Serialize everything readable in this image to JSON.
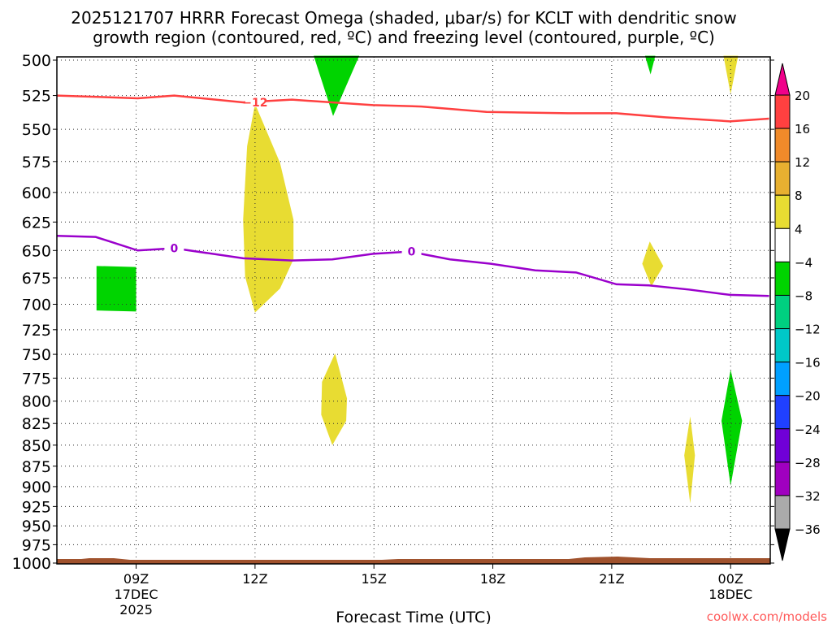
{
  "chart_data": {
    "type": "heatmap",
    "title": [
      "2025121707 HRRR Forecast Omega (shaded, μbar/s) for KCLT with dendritic snow",
      "growth region (contoured, red, ºC) and freezing level (contoured, purple, ºC)"
    ],
    "xlabel": "Forecast Time (UTC)",
    "ylabel": "",
    "credit": "coolwx.com/models",
    "xlim_hours": [
      7,
      25
    ],
    "ylim_hPa": [
      497,
      1000
    ],
    "x_ticks": [
      {
        "hour": 9,
        "lines": [
          "09Z",
          "17DEC",
          "2025"
        ]
      },
      {
        "hour": 12,
        "lines": [
          "12Z"
        ]
      },
      {
        "hour": 15,
        "lines": [
          "15Z"
        ]
      },
      {
        "hour": 18,
        "lines": [
          "18Z"
        ]
      },
      {
        "hour": 21,
        "lines": [
          "21Z"
        ]
      },
      {
        "hour": 24,
        "lines": [
          "00Z",
          "18DEC"
        ]
      }
    ],
    "y_ticks": [
      "500",
      "525",
      "550",
      "575",
      "600",
      "625",
      "650",
      "675",
      "700",
      "725",
      "750",
      "775",
      "800",
      "825",
      "850",
      "875",
      "900",
      "925",
      "950",
      "975",
      "1000"
    ],
    "colorbar": {
      "labels": [
        "20",
        "16",
        "12",
        "8",
        "4",
        "−4",
        "−8",
        "−12",
        "−16",
        "−20",
        "−24",
        "−28",
        "−32",
        "−36"
      ],
      "colors": [
        "#ff4040",
        "#f08a2a",
        "#e8b030",
        "#e8dc32",
        "#ffffff",
        "#00d400",
        "#00d080",
        "#00c8c8",
        "#00a0ff",
        "#2040ff",
        "#7000d8",
        "#a000c0",
        "#aaaaaa"
      ],
      "top_arrow": "#f0008a",
      "bottom_arrow": "#000000"
    },
    "contours": [
      {
        "name": "dendritic-minus12",
        "label": "−12",
        "color": "#ff4040",
        "label_at": [
          12.0,
          530
        ],
        "points": [
          [
            7.0,
            525
          ],
          [
            9.04,
            527
          ],
          [
            9.96,
            525
          ],
          [
            11.7,
            530
          ],
          [
            12.93,
            528
          ],
          [
            14.98,
            532
          ],
          [
            16.2,
            533
          ],
          [
            17.84,
            537
          ],
          [
            19.89,
            538
          ],
          [
            21.12,
            538
          ],
          [
            22.35,
            541
          ],
          [
            23.98,
            544
          ],
          [
            24.97,
            542
          ]
        ]
      },
      {
        "name": "freezing-level-0",
        "label": "0",
        "color": "#9a00cc",
        "label_at": [
          [
            9.96,
            648
          ],
          [
            15.95,
            651
          ]
        ],
        "points": [
          [
            7.0,
            637
          ],
          [
            7.98,
            638
          ],
          [
            9.04,
            650
          ],
          [
            9.96,
            648
          ],
          [
            11.7,
            657
          ],
          [
            12.93,
            659
          ],
          [
            13.95,
            658
          ],
          [
            14.98,
            653
          ],
          [
            15.9,
            651
          ],
          [
            16.92,
            658
          ],
          [
            17.95,
            662
          ],
          [
            19.07,
            668
          ],
          [
            20.1,
            670
          ],
          [
            21.12,
            681
          ],
          [
            21.94,
            682
          ],
          [
            22.96,
            686
          ],
          [
            23.98,
            691
          ],
          [
            24.97,
            692
          ]
        ]
      }
    ],
    "shaded_regions": [
      {
        "range": "-8 to -4",
        "color": "#00d400",
        "points": [
          [
            13.48,
            497
          ],
          [
            14.63,
            497
          ],
          [
            13.97,
            540
          ]
        ]
      },
      {
        "range": "-8 to -4",
        "color": "#00d400",
        "points": [
          [
            21.84,
            497
          ],
          [
            22.1,
            497
          ],
          [
            21.98,
            510
          ]
        ]
      },
      {
        "range": "4 to 8",
        "color": "#e8dc32",
        "points": [
          [
            23.82,
            497
          ],
          [
            24.19,
            497
          ],
          [
            24.0,
            524
          ]
        ]
      },
      {
        "range": "-8 to -4",
        "color": "#00d400",
        "points": [
          [
            8.0,
            664
          ],
          [
            9.0,
            665
          ],
          [
            9.0,
            707
          ],
          [
            8.0,
            706
          ]
        ]
      },
      {
        "range": "4 to 8",
        "color": "#e8dc32",
        "points": [
          [
            12.0,
            531
          ],
          [
            12.63,
            576
          ],
          [
            12.97,
            623
          ],
          [
            12.97,
            658
          ],
          [
            12.63,
            685
          ],
          [
            12.0,
            708
          ],
          [
            11.75,
            674
          ],
          [
            11.7,
            623
          ],
          [
            11.8,
            563
          ]
        ]
      },
      {
        "range": "4 to 8",
        "color": "#e8dc32",
        "points": [
          [
            21.96,
            642
          ],
          [
            22.3,
            664
          ],
          [
            22.0,
            683
          ],
          [
            21.77,
            662
          ]
        ]
      },
      {
        "range": "4 to 8",
        "color": "#e8dc32",
        "points": [
          [
            14.02,
            749
          ],
          [
            14.32,
            797
          ],
          [
            14.3,
            822
          ],
          [
            13.95,
            850
          ],
          [
            13.67,
            815
          ],
          [
            13.69,
            779
          ]
        ]
      },
      {
        "range": "-8 to -4",
        "color": "#00d400",
        "points": [
          [
            24.0,
            766
          ],
          [
            24.29,
            822
          ],
          [
            24.0,
            899
          ],
          [
            23.77,
            822
          ]
        ]
      },
      {
        "range": "4 to 8",
        "color": "#e8dc32",
        "points": [
          [
            22.98,
            817
          ],
          [
            23.1,
            862
          ],
          [
            22.98,
            921
          ],
          [
            22.83,
            862
          ]
        ]
      }
    ],
    "terrain_color": "#a0522d"
  }
}
